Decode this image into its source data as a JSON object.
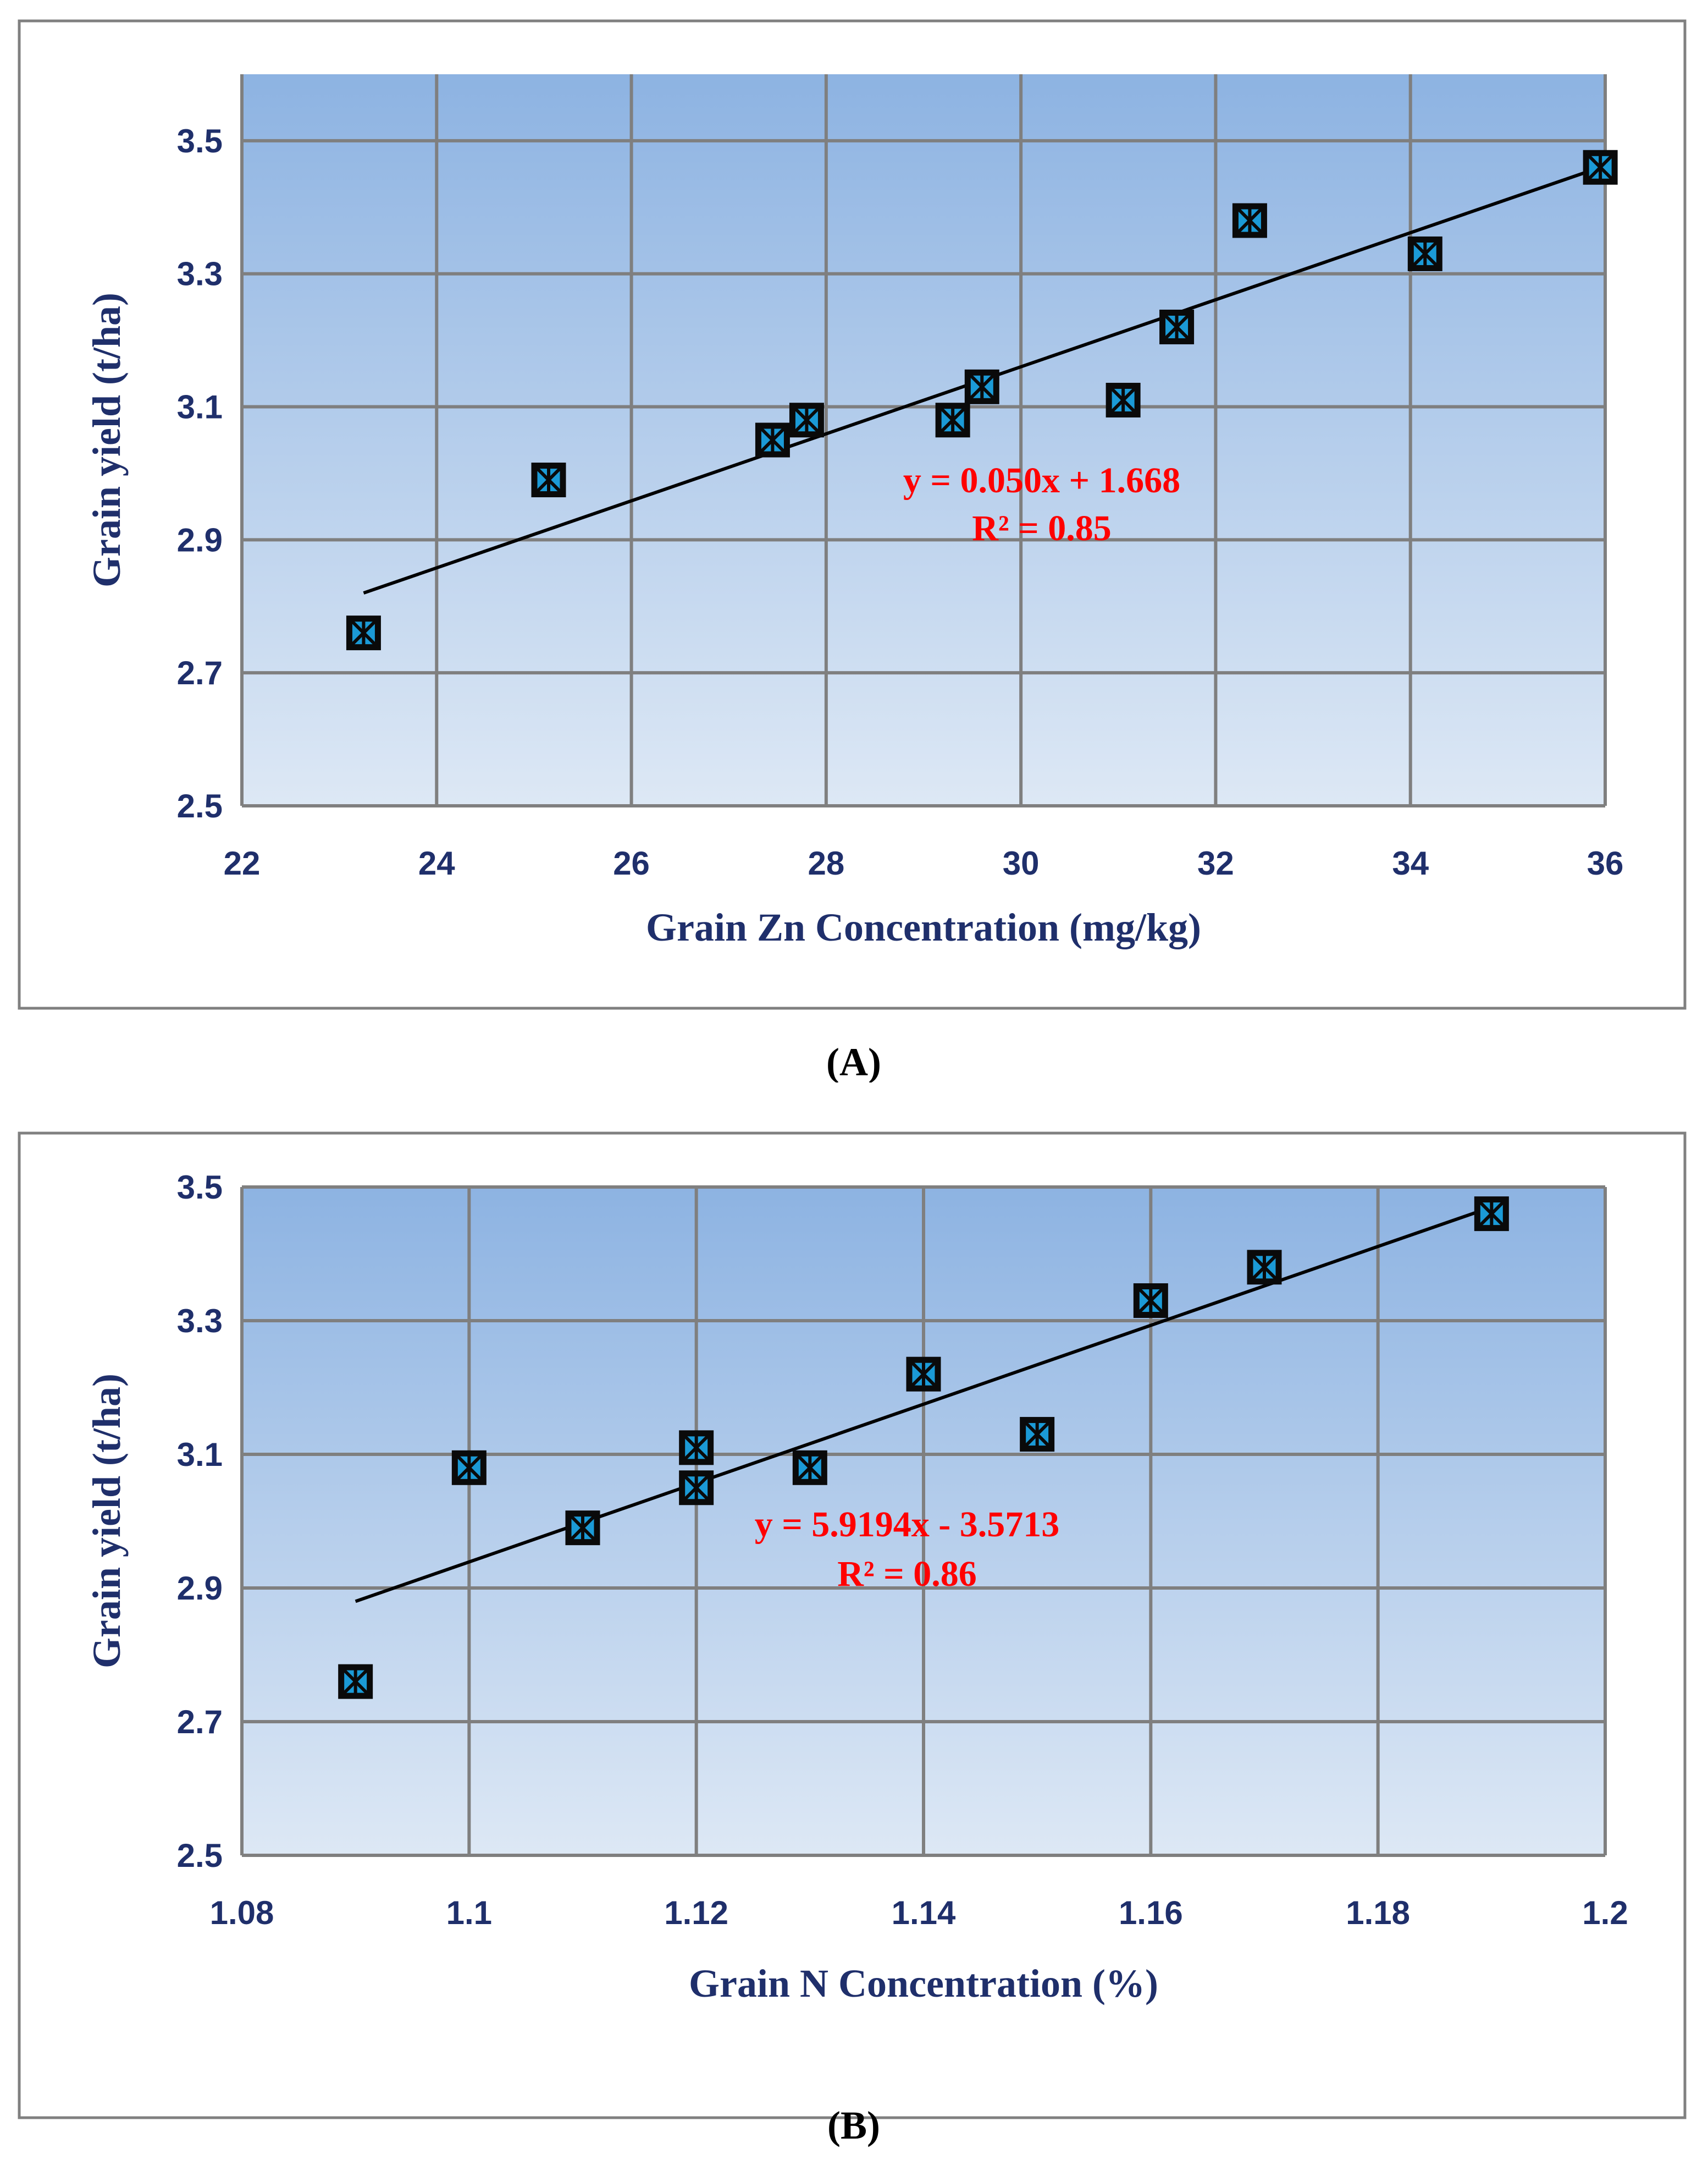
{
  "colors": {
    "axis_text": "#1f2f6b",
    "equation": "#ff0000",
    "marker_fill": "#1b9ad6",
    "plot_top": "#8db3e2",
    "plot_bottom": "#dde8f5"
  },
  "chart_data": [
    {
      "type": "scatter",
      "panel_label": "(A)",
      "xlabel": "Grain Zn Concentration (mg/kg)",
      "ylabel": "Grain yield (t/ha)",
      "xlim": [
        22,
        36
      ],
      "ylim": [
        2.5,
        3.6
      ],
      "x_ticks": [
        22,
        24,
        26,
        28,
        30,
        32,
        34,
        36
      ],
      "y_ticks": [
        2.5,
        2.7,
        2.9,
        3.1,
        3.3,
        3.5
      ],
      "x_tick_labels": [
        "22",
        "24",
        "26",
        "28",
        "30",
        "32",
        "34",
        "36"
      ],
      "y_tick_labels": [
        "2.5",
        "2.7",
        "2.9",
        "3.1",
        "3.3",
        "3.5"
      ],
      "points": [
        {
          "x": 23.25,
          "y": 2.76
        },
        {
          "x": 25.15,
          "y": 2.99
        },
        {
          "x": 27.45,
          "y": 3.05
        },
        {
          "x": 27.8,
          "y": 3.08
        },
        {
          "x": 29.3,
          "y": 3.08
        },
        {
          "x": 29.6,
          "y": 3.13
        },
        {
          "x": 31.05,
          "y": 3.11
        },
        {
          "x": 31.6,
          "y": 3.22
        },
        {
          "x": 32.35,
          "y": 3.38
        },
        {
          "x": 34.15,
          "y": 3.33
        },
        {
          "x": 35.95,
          "y": 3.46
        }
      ],
      "trendline": {
        "x0": 23.25,
        "y0": 2.82,
        "x1": 35.95,
        "y1": 3.46
      },
      "equation": "y = 0.050x + 1.668",
      "r_squared": "R² = 0.85"
    },
    {
      "type": "scatter",
      "panel_label": "(B)",
      "xlabel": "Grain N Concentration (%)",
      "ylabel": "Grain yield (t/ha)",
      "xlim": [
        1.08,
        1.2
      ],
      "ylim": [
        2.5,
        3.5
      ],
      "x_ticks": [
        1.08,
        1.1,
        1.12,
        1.14,
        1.16,
        1.18,
        1.2
      ],
      "y_ticks": [
        2.5,
        2.7,
        2.9,
        3.1,
        3.3,
        3.5
      ],
      "x_tick_labels": [
        "1.08",
        "1.1",
        "1.12",
        "1.14",
        "1.16",
        "1.18",
        "1.2"
      ],
      "y_tick_labels": [
        "2.5",
        "2.7",
        "2.9",
        "3.1",
        "3.3",
        "3.5"
      ],
      "points": [
        {
          "x": 1.09,
          "y": 2.76
        },
        {
          "x": 1.1,
          "y": 3.08
        },
        {
          "x": 1.11,
          "y": 2.99
        },
        {
          "x": 1.12,
          "y": 3.05
        },
        {
          "x": 1.12,
          "y": 3.11
        },
        {
          "x": 1.13,
          "y": 3.08
        },
        {
          "x": 1.14,
          "y": 3.22
        },
        {
          "x": 1.15,
          "y": 3.13
        },
        {
          "x": 1.16,
          "y": 3.33
        },
        {
          "x": 1.17,
          "y": 3.38
        },
        {
          "x": 1.19,
          "y": 3.46
        }
      ],
      "trendline": {
        "x0": 1.09,
        "y0": 2.88,
        "x1": 1.19,
        "y1": 3.47
      },
      "equation": "y = 5.9194x - 3.5713",
      "r_squared": "R² = 0.86"
    }
  ]
}
